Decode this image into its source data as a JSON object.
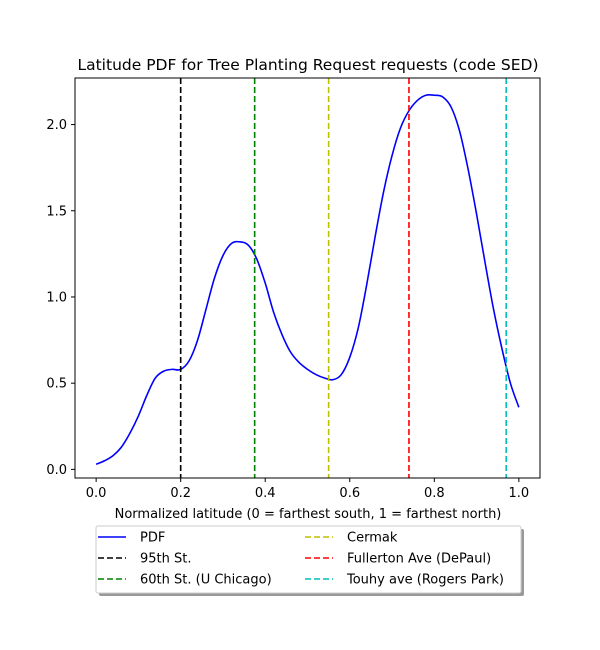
{
  "chart_data": {
    "type": "line",
    "title": "Latitude PDF for Tree Planting Request  requests (code SED)",
    "xlabel": "Normalized latitude (0 = farthest south, 1 = farthest north)",
    "ylabel": "",
    "xlim": [
      -0.05,
      1.05
    ],
    "ylim": [
      -0.05,
      2.27
    ],
    "xticks": [
      "0.0",
      "0.2",
      "0.4",
      "0.6",
      "0.8",
      "1.0"
    ],
    "xtick_values": [
      0.0,
      0.2,
      0.4,
      0.6,
      0.8,
      1.0
    ],
    "yticks": [
      "0.0",
      "0.5",
      "1.0",
      "1.5",
      "2.0"
    ],
    "ytick_values": [
      0.0,
      0.5,
      1.0,
      1.5,
      2.0
    ],
    "grid": false,
    "legend_position": "below plot, two columns",
    "series": [
      {
        "name": "PDF",
        "color": "#0000ff",
        "style": "solid",
        "x": [
          0.0,
          0.02,
          0.04,
          0.06,
          0.08,
          0.1,
          0.12,
          0.14,
          0.16,
          0.18,
          0.2,
          0.22,
          0.24,
          0.26,
          0.28,
          0.3,
          0.32,
          0.34,
          0.36,
          0.38,
          0.4,
          0.42,
          0.44,
          0.46,
          0.48,
          0.5,
          0.52,
          0.54,
          0.56,
          0.58,
          0.6,
          0.62,
          0.64,
          0.66,
          0.68,
          0.7,
          0.72,
          0.74,
          0.76,
          0.78,
          0.8,
          0.82,
          0.84,
          0.86,
          0.88,
          0.9,
          0.92,
          0.94,
          0.96,
          0.98,
          1.0
        ],
        "y": [
          0.03,
          0.05,
          0.08,
          0.13,
          0.21,
          0.31,
          0.43,
          0.53,
          0.57,
          0.58,
          0.58,
          0.63,
          0.75,
          0.93,
          1.11,
          1.24,
          1.31,
          1.32,
          1.3,
          1.22,
          1.08,
          0.91,
          0.78,
          0.68,
          0.62,
          0.58,
          0.55,
          0.53,
          0.52,
          0.55,
          0.65,
          0.82,
          1.07,
          1.35,
          1.61,
          1.82,
          1.98,
          2.08,
          2.14,
          2.17,
          2.17,
          2.16,
          2.1,
          1.96,
          1.74,
          1.48,
          1.2,
          0.93,
          0.7,
          0.5,
          0.36
        ]
      }
    ],
    "vlines": [
      {
        "name": "95th St.",
        "x": 0.2,
        "color": "#000000"
      },
      {
        "name": "60th St. (U Chicago)",
        "x": 0.375,
        "color": "#008000"
      },
      {
        "name": "Cermak",
        "x": 0.55,
        "color": "#bfbf00"
      },
      {
        "name": "Fullerton Ave (DePaul)",
        "x": 0.74,
        "color": "#ff0000"
      },
      {
        "name": "Touhy ave (Rogers Park)",
        "x": 0.97,
        "color": "#00bfbf"
      }
    ],
    "legend": {
      "col1": [
        "PDF",
        "95th St.",
        "60th St. (U Chicago)"
      ],
      "col2": [
        "Cermak",
        "Fullerton Ave (DePaul)",
        "Touhy ave (Rogers Park)"
      ]
    }
  }
}
